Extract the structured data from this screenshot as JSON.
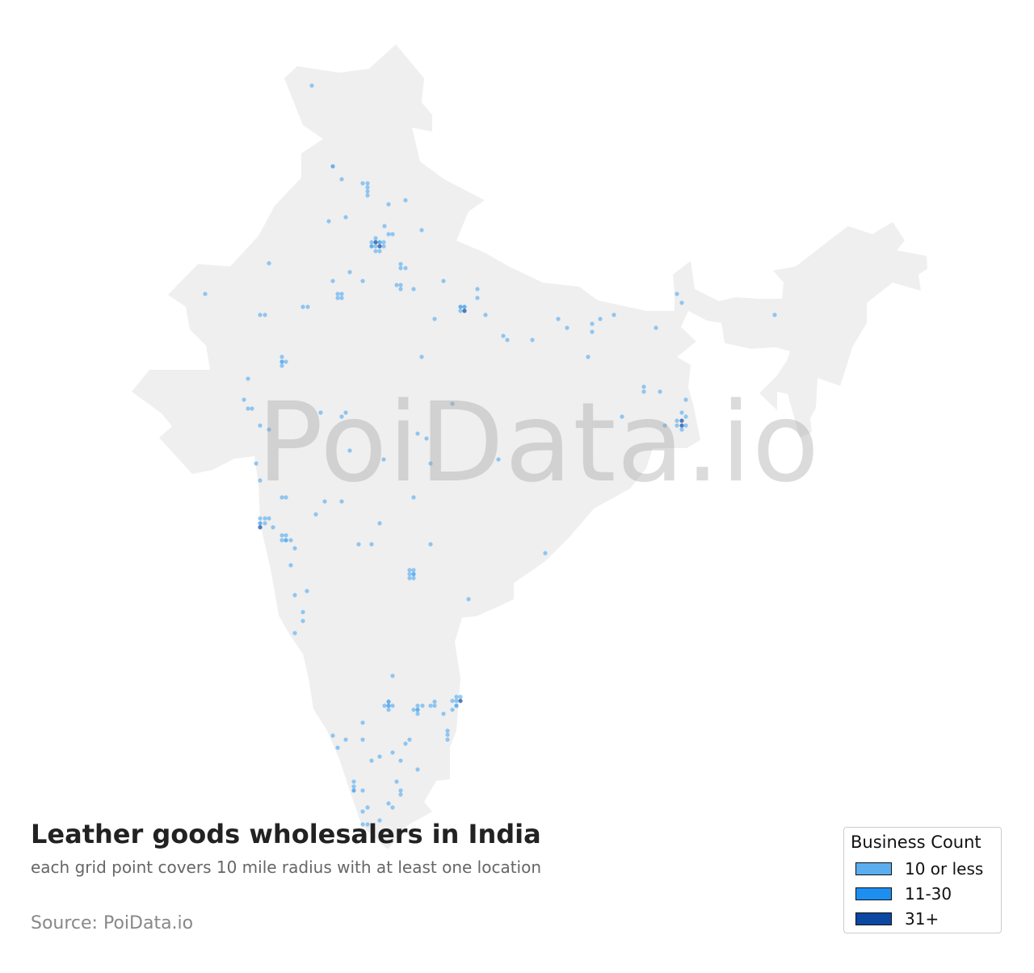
{
  "title": "Leather goods wholesalers in India",
  "subtitle": "each grid point covers 10 mile radius with at least one location",
  "source": "Source: PoiData.io",
  "watermark": "PoiData.io",
  "map": {
    "region": "India",
    "land_color": "#efefef"
  },
  "legend": {
    "title": "Business Count",
    "items": [
      {
        "label": "10 or less",
        "color": "#5aaef0"
      },
      {
        "label": "11-30",
        "color": "#1e8ff0"
      },
      {
        "label": "31+",
        "color": "#0c47a1"
      }
    ]
  }
}
